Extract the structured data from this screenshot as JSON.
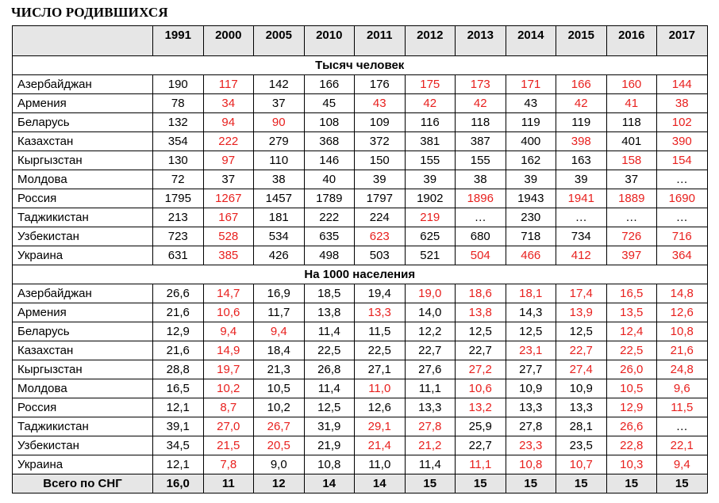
{
  "title": "ЧИСЛО РОДИВШИХСЯ",
  "colors": {
    "highlight": "#e8201e",
    "header_bg": "#e6e6e6"
  },
  "years": [
    "1991",
    "2000",
    "2005",
    "2010",
    "2011",
    "2012",
    "2013",
    "2014",
    "2015",
    "2016",
    "2017"
  ],
  "sections": [
    {
      "label": "Тысяч человек",
      "rows": [
        {
          "country": "Азербайджан",
          "values": [
            "190",
            "117",
            "142",
            "166",
            "176",
            "175",
            "173",
            "171",
            "166",
            "160",
            "144"
          ],
          "red": [
            false,
            true,
            false,
            false,
            false,
            true,
            true,
            true,
            true,
            true,
            true
          ]
        },
        {
          "country": "Армения",
          "values": [
            "78",
            "34",
            "37",
            "45",
            "43",
            "42",
            "42",
            "43",
            "42",
            "41",
            "38"
          ],
          "red": [
            false,
            true,
            false,
            false,
            true,
            true,
            true,
            false,
            true,
            true,
            true
          ]
        },
        {
          "country": "Беларусь",
          "values": [
            "132",
            "94",
            "90",
            "108",
            "109",
            "116",
            "118",
            "119",
            "119",
            "118",
            "102"
          ],
          "red": [
            false,
            true,
            true,
            false,
            false,
            false,
            false,
            false,
            false,
            false,
            true
          ]
        },
        {
          "country": "Казахстан",
          "values": [
            "354",
            "222",
            "279",
            "368",
            "372",
            "381",
            "387",
            "400",
            "398",
            "401",
            "390"
          ],
          "red": [
            false,
            true,
            false,
            false,
            false,
            false,
            false,
            false,
            true,
            false,
            true
          ]
        },
        {
          "country": "Кыргызстан",
          "values": [
            "130",
            "97",
            "110",
            "146",
            "150",
            "155",
            "155",
            "162",
            "163",
            "158",
            "154"
          ],
          "red": [
            false,
            true,
            false,
            false,
            false,
            false,
            false,
            false,
            false,
            true,
            true
          ]
        },
        {
          "country": "Молдова",
          "values": [
            "72",
            "37",
            "38",
            "40",
            "39",
            "39",
            "38",
            "39",
            "39",
            "37",
            "…"
          ],
          "red": [
            false,
            false,
            false,
            false,
            false,
            false,
            false,
            false,
            false,
            false,
            false
          ]
        },
        {
          "country": "Россия",
          "values": [
            "1795",
            "1267",
            "1457",
            "1789",
            "1797",
            "1902",
            "1896",
            "1943",
            "1941",
            "1889",
            "1690"
          ],
          "red": [
            false,
            true,
            false,
            false,
            false,
            false,
            true,
            false,
            true,
            true,
            true
          ]
        },
        {
          "country": "Таджикистан",
          "values": [
            "213",
            "167",
            "181",
            "222",
            "224",
            "219",
            "…",
            "230",
            "…",
            "…",
            "…"
          ],
          "red": [
            false,
            true,
            false,
            false,
            false,
            true,
            false,
            false,
            false,
            false,
            false
          ]
        },
        {
          "country": "Узбекистан",
          "values": [
            "723",
            "528",
            "534",
            "635",
            "623",
            "625",
            "680",
            "718",
            "734",
            "726",
            "716"
          ],
          "red": [
            false,
            true,
            false,
            false,
            true,
            false,
            false,
            false,
            false,
            true,
            true
          ]
        },
        {
          "country": "Украина",
          "values": [
            "631",
            "385",
            "426",
            "498",
            "503",
            "521",
            "504",
            "466",
            "412",
            "397",
            "364"
          ],
          "red": [
            false,
            true,
            false,
            false,
            false,
            false,
            true,
            true,
            true,
            true,
            true
          ]
        }
      ]
    },
    {
      "label": "На 1000 населения",
      "rows": [
        {
          "country": "Азербайджан",
          "values": [
            "26,6",
            "14,7",
            "16,9",
            "18,5",
            "19,4",
            "19,0",
            "18,6",
            "18,1",
            "17,4",
            "16,5",
            "14,8"
          ],
          "red": [
            false,
            true,
            false,
            false,
            false,
            true,
            true,
            true,
            true,
            true,
            true
          ]
        },
        {
          "country": "Армения",
          "values": [
            "21,6",
            "10,6",
            "11,7",
            "13,8",
            "13,3",
            "14,0",
            "13,8",
            "14,3",
            "13,9",
            "13,5",
            "12,6"
          ],
          "red": [
            false,
            true,
            false,
            false,
            true,
            false,
            true,
            false,
            true,
            true,
            true
          ]
        },
        {
          "country": "Беларусь",
          "values": [
            "12,9",
            "9,4",
            "9,4",
            "11,4",
            "11,5",
            "12,2",
            "12,5",
            "12,5",
            "12,5",
            "12,4",
            "10,8"
          ],
          "red": [
            false,
            true,
            true,
            false,
            false,
            false,
            false,
            false,
            false,
            true,
            true
          ]
        },
        {
          "country": "Казахстан",
          "values": [
            "21,6",
            "14,9",
            "18,4",
            "22,5",
            "22,5",
            "22,7",
            "22,7",
            "23,1",
            "22,7",
            "22,5",
            "21,6"
          ],
          "red": [
            false,
            true,
            false,
            false,
            false,
            false,
            false,
            true,
            true,
            true,
            true
          ]
        },
        {
          "country": "Кыргызстан",
          "values": [
            "28,8",
            "19,7",
            "21,3",
            "26,8",
            "27,1",
            "27,6",
            "27,2",
            "27,7",
            "27,4",
            "26,0",
            "24,8"
          ],
          "red": [
            false,
            true,
            false,
            false,
            false,
            false,
            true,
            false,
            true,
            true,
            true
          ]
        },
        {
          "country": "Молдова",
          "values": [
            "16,5",
            "10,2",
            "10,5",
            "11,4",
            "11,0",
            "11,1",
            "10,6",
            "10,9",
            "10,9",
            "10,5",
            "9,6"
          ],
          "red": [
            false,
            true,
            false,
            false,
            true,
            false,
            true,
            false,
            false,
            true,
            true
          ]
        },
        {
          "country": "Россия",
          "values": [
            "12,1",
            "8,7",
            "10,2",
            "12,5",
            "12,6",
            "13,3",
            "13,2",
            "13,3",
            "13,3",
            "12,9",
            "11,5"
          ],
          "red": [
            false,
            true,
            false,
            false,
            false,
            false,
            true,
            false,
            false,
            true,
            true
          ]
        },
        {
          "country": "Таджикистан",
          "values": [
            "39,1",
            "27,0",
            "26,7",
            "31,9",
            "29,1",
            "27,8",
            "25,9",
            "27,8",
            "28,1",
            "26,6",
            "…"
          ],
          "red": [
            false,
            true,
            true,
            false,
            true,
            true,
            false,
            false,
            false,
            true,
            false
          ]
        },
        {
          "country": "Узбекистан",
          "values": [
            "34,5",
            "21,5",
            "20,5",
            "21,9",
            "21,4",
            "21,2",
            "22,7",
            "23,3",
            "23,5",
            "22,8",
            "22,1"
          ],
          "red": [
            false,
            true,
            true,
            false,
            true,
            true,
            false,
            true,
            false,
            true,
            true
          ]
        },
        {
          "country": "Украина",
          "values": [
            "12,1",
            "7,8",
            "9,0",
            "10,8",
            "11,0",
            "11,4",
            "11,1",
            "10,8",
            "10,7",
            "10,3",
            "9,4"
          ],
          "red": [
            false,
            true,
            false,
            false,
            false,
            false,
            true,
            true,
            true,
            true,
            true
          ]
        }
      ]
    }
  ],
  "total": {
    "label": "Всего по СНГ",
    "values": [
      "16,0",
      "11",
      "12",
      "14",
      "14",
      "15",
      "15",
      "15",
      "15",
      "15",
      "15"
    ]
  }
}
